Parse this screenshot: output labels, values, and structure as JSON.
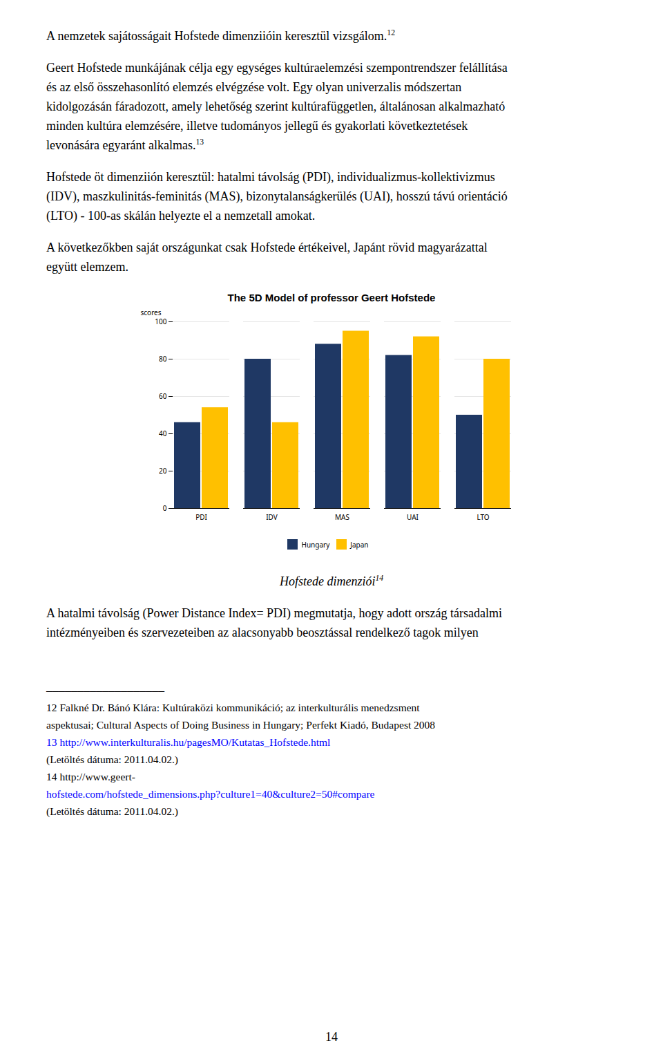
{
  "chart_data": {
    "type": "bar",
    "title": "The 5D Model of professor Geert Hofstede",
    "categories": [
      "PDI",
      "IDV",
      "MAS",
      "UAI",
      "LTO"
    ],
    "series": [
      {
        "name": "Hungary",
        "color": "#1F3864",
        "values": [
          46,
          80,
          88,
          82,
          50
        ]
      },
      {
        "name": "Japan",
        "color": "#FFC000",
        "values": [
          54,
          46,
          95,
          92,
          80
        ]
      }
    ],
    "ylabel": "scores",
    "ylim": [
      0,
      100
    ],
    "yticks": [
      0,
      20,
      40,
      60,
      80,
      100
    ],
    "grid": true,
    "legend": "bottom",
    "annotations": [
      [
        {
          "text": "A nemzetek sajátosságait Hofstede dimenziióin keresztül vizsgálom.",
          "sup": "12"
        }
      ],
      [
        {
          "text": "Geert Hofstede munkájának célja egy egységes kultúraelemzési szempontrendszer felállítása"
        },
        {
          "text": "és az első összehasonlító elemzés elvégzése volt. Egy olyan univerzalis módszertan"
        },
        {
          "text": "kidolgozásán fáradozott, amely lehetőség szerint kultúrafüggetlen, általánosan alkalmazható"
        },
        {
          "text": "minden kultúra elemzésére, illetve tudományos jellegű és gyakorlati következtetések"
        },
        {
          "text": "levonására egyaránt alkalmas.",
          "sup": "13"
        }
      ],
      [
        {
          "text": "Hofstede öt dimenziión keresztül: hatalmi távolság (PDI), individualizmus-kollektivizmus"
        },
        {
          "text": "(IDV), maszkulinitás-feminitás (MAS), bizonytalanságkerülés (UAI), hosszú távú orientáció"
        },
        {
          "text": "(LTO) - 100-as skálán helyezte el a nemzetall amokat."
        }
      ],
      [
        {
          "text": "A következőkben saját országunkat csak Hofstede értékeivel, Japánt rövid magyarázattal"
        },
        {
          "text": "együtt elemzem."
        }
      ],
      [
        {
          "text": "Hofstede dimenziói",
          "sup": "14"
        }
      ],
      [
        {
          "text": "A hatalmi távolság (Power Distance Index= PDI) megmutatja, hogy adott ország társadalmi"
        },
        {
          "text": "intézményeiben és szervezeteiben az alacsonyabb beosztással rendelkező tagok milyen"
        }
      ],
      [
        {
          "text": "___________________"
        }
      ],
      [
        {
          "text": "12 Falkné Dr. Bánó Klára: Kultúraközi kommunikáció; az interkulturális menedzsment"
        },
        {
          "text": "aspektusai; Cultural Aspects of Doing Business in Hungary; Perfekt Kiadó, Budapest 2008"
        },
        {
          "text": "13 http://www.interkulturalis.hu/pagesMO/Kutatas_Hofstede.html",
          "color": "blue"
        },
        {
          "text": "(Letöltés dátuma: 2011.04.02.)"
        },
        {
          "text": "14 http://www.geert-"
        },
        {
          "text": "hofstede.com/hofstede_dimensions.php?culture1=40&culture2=50#compare",
          "color": "blue"
        },
        {
          "text": "(Letöltés dátuma: 2011.04.02.)"
        }
      ],
      [
        {
          "text": "14"
        }
      ]
    ]
  }
}
